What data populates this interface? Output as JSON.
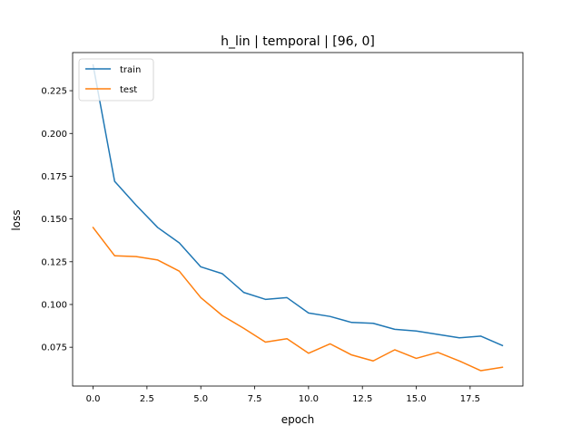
{
  "chart_data": {
    "type": "line",
    "title": "h_lin | temporal | [96, 0]",
    "xlabel": "epoch",
    "ylabel": "loss",
    "xlim": [
      -0.95,
      19.95
    ],
    "ylim": [
      0.0523,
      0.2473
    ],
    "xticks": [
      0.0,
      2.5,
      5.0,
      7.5,
      10.0,
      12.5,
      15.0,
      17.5
    ],
    "xtick_labels": [
      "0.0",
      "2.5",
      "5.0",
      "7.5",
      "10.0",
      "12.5",
      "15.0",
      "17.5"
    ],
    "yticks": [
      0.075,
      0.1,
      0.125,
      0.15,
      0.175,
      0.2,
      0.225
    ],
    "ytick_labels": [
      "0.075",
      "0.100",
      "0.125",
      "0.150",
      "0.175",
      "0.200",
      "0.225"
    ],
    "grid": false,
    "legend_position": "top-left",
    "x": [
      0,
      1,
      2,
      3,
      4,
      5,
      6,
      7,
      8,
      9,
      10,
      11,
      12,
      13,
      14,
      15,
      16,
      17,
      18,
      19
    ],
    "series": [
      {
        "name": "train",
        "color": "#1f77b4",
        "values": [
          0.24,
          0.172,
          0.158,
          0.145,
          0.136,
          0.122,
          0.118,
          0.107,
          0.103,
          0.104,
          0.095,
          0.093,
          0.0895,
          0.089,
          0.0855,
          0.0845,
          0.0825,
          0.0805,
          0.0815,
          0.076
        ]
      },
      {
        "name": "test",
        "color": "#ff7f0e",
        "values": [
          0.145,
          0.1285,
          0.128,
          0.126,
          0.1195,
          0.104,
          0.0935,
          0.086,
          0.078,
          0.08,
          0.0715,
          0.077,
          0.0705,
          0.067,
          0.0735,
          0.0685,
          0.072,
          0.067,
          0.0613,
          0.0633
        ]
      }
    ]
  }
}
